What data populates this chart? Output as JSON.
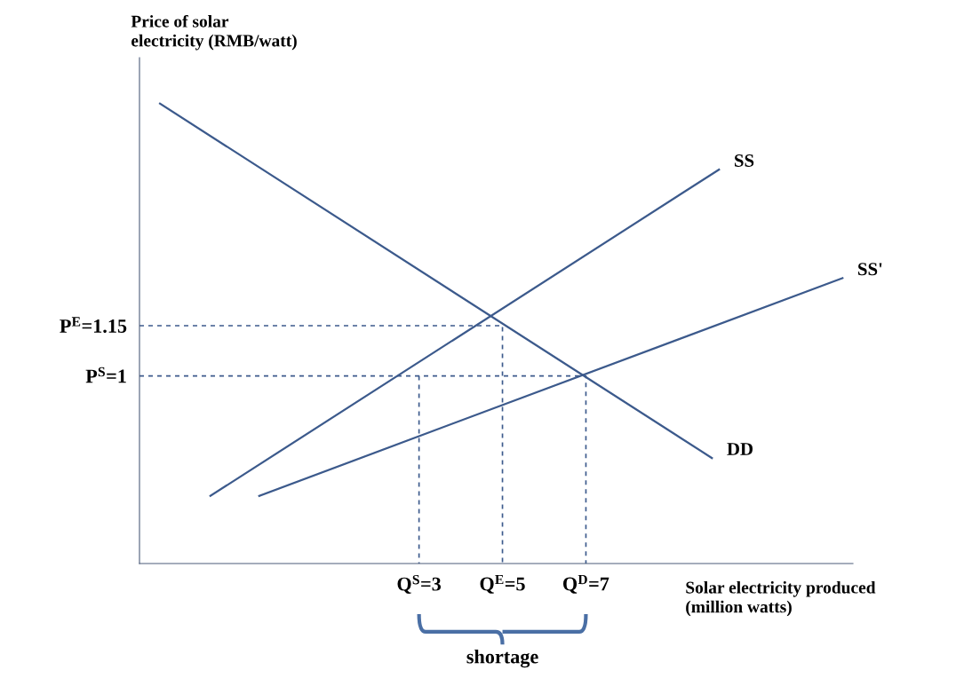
{
  "chart_data": {
    "type": "line",
    "xlabel": "Solar electricity produced\n(million watts)",
    "ylabel": "Price of solar\nelectricity (RMB/watt)",
    "xlim": [
      -3.7,
      13.4
    ],
    "ylim": [
      0.44,
      1.95
    ],
    "xticks": [
      {
        "value": 3,
        "label": "Q$^{S}$=3"
      },
      {
        "value": 5,
        "label": "Q$^{E}$=5"
      },
      {
        "value": 7,
        "label": "Q$^{D}$=7"
      }
    ],
    "yticks": [
      {
        "value": 1,
        "label": "P$^{S}$=1"
      },
      {
        "value": 1.15,
        "label": "P$^{E}$=1.15"
      }
    ],
    "series": [
      {
        "name": "DD",
        "color": "#3c5a8c",
        "x": [
          -3.21,
          10.02
        ],
        "values": [
          1.813,
          0.755
        ]
      },
      {
        "name": "SS",
        "color": "#3c5a8c",
        "x": [
          -2.0,
          10.19
        ],
        "values": [
          0.642,
          1.616
        ]
      },
      {
        "name": "SS'",
        "color": "#3c5a8c",
        "x": [
          -0.83,
          13.15
        ],
        "values": [
          0.642,
          1.292
        ]
      },
      {
        "color": "#3c5a8c",
        "line_style": "dashed",
        "x": [
          -3.7,
          5,
          5
        ],
        "values": [
          1.15,
          1.15,
          0.44
        ]
      },
      {
        "color": "#3c5a8c",
        "line_style": "dashed",
        "x": [
          -3.7,
          7,
          7
        ],
        "values": [
          1,
          1,
          0.44
        ]
      },
      {
        "color": "#3c5a8c",
        "line_style": "dashed",
        "x": [
          3,
          3
        ],
        "values": [
          1,
          0.44
        ]
      }
    ],
    "annotations": [
      "shortage"
    ],
    "grid": false,
    "legend": false,
    "marker": "none"
  }
}
